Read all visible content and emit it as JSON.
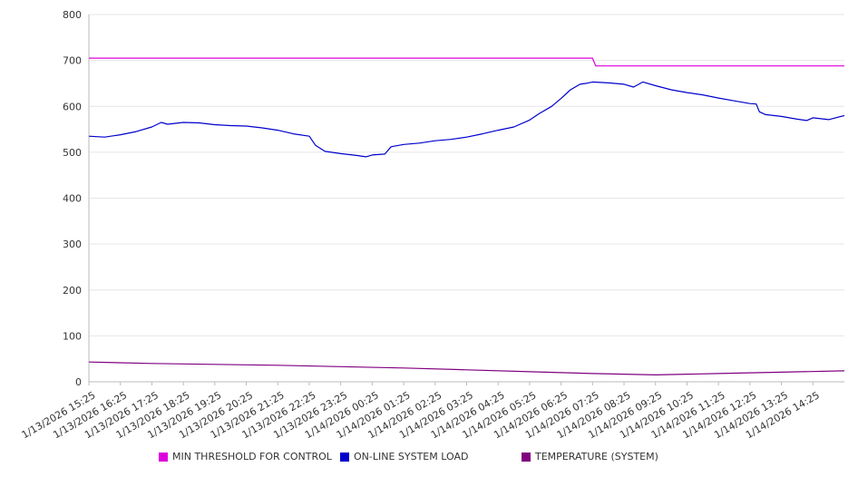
{
  "chart_data": {
    "type": "line",
    "title": "",
    "xlabel": "",
    "ylabel": "",
    "ylim": [
      0,
      800
    ],
    "yticks": [
      0,
      100,
      200,
      300,
      400,
      500,
      600,
      700,
      800
    ],
    "grid": true,
    "legend_position": "bottom",
    "categories": [
      "1/13/2026 15:25",
      "1/13/2026 16:25",
      "1/13/2026 17:25",
      "1/13/2026 18:25",
      "1/13/2026 19:25",
      "1/13/2026 20:25",
      "1/13/2026 21:25",
      "1/13/2026 22:25",
      "1/13/2026 23:25",
      "1/14/2026 00:25",
      "1/14/2026 01:25",
      "1/14/2026 02:25",
      "1/14/2026 03:25",
      "1/14/2026 04:25",
      "1/14/2026 05:25",
      "1/14/2026 06:25",
      "1/14/2026 07:25",
      "1/14/2026 08:25",
      "1/14/2026 09:25",
      "1/14/2026 10:25",
      "1/14/2026 11:25",
      "1/14/2026 12:25",
      "1/14/2026 13:25",
      "1/14/2026 14:25"
    ],
    "series": [
      {
        "name": "MIN THRESHOLD FOR CONTROL",
        "color": "#dd00dd",
        "x": [
          0,
          16.0,
          16.1,
          24
        ],
        "values": [
          705,
          705,
          688,
          688
        ]
      },
      {
        "name": "ON-LINE SYSTEM LOAD",
        "color": "#0000cc",
        "x": [
          0,
          0.5,
          1.0,
          1.5,
          2.0,
          2.3,
          2.5,
          3.0,
          3.5,
          4.0,
          4.5,
          5.0,
          5.5,
          6.0,
          6.5,
          7.0,
          7.2,
          7.5,
          8.0,
          8.5,
          8.8,
          9.0,
          9.4,
          9.6,
          10.0,
          10.5,
          11.0,
          11.5,
          12.0,
          12.5,
          13.0,
          13.5,
          14.0,
          14.3,
          14.7,
          15.0,
          15.3,
          15.6,
          15.8,
          16.0,
          16.5,
          17.0,
          17.3,
          17.6,
          18.0,
          18.5,
          19.0,
          19.5,
          20.0,
          20.5,
          21.0,
          21.2,
          21.3,
          21.5,
          22.0,
          22.5,
          22.8,
          23.0,
          23.5,
          24.0
        ],
        "values": [
          535,
          533,
          538,
          545,
          555,
          565,
          561,
          565,
          564,
          560,
          558,
          557,
          553,
          548,
          540,
          535,
          515,
          502,
          497,
          493,
          490,
          494,
          496,
          512,
          517,
          520,
          525,
          528,
          533,
          540,
          548,
          555,
          570,
          584,
          600,
          617,
          636,
          648,
          650,
          653,
          651,
          648,
          642,
          653,
          645,
          636,
          630,
          625,
          618,
          612,
          606,
          605,
          588,
          582,
          578,
          572,
          569,
          575,
          571,
          580
        ]
      },
      {
        "name": "TEMPERATURE (SYSTEM)",
        "color": "#800080",
        "x": [
          0,
          2,
          4,
          6,
          8,
          10,
          12,
          14,
          16,
          18,
          20,
          22,
          24
        ],
        "values": [
          43,
          40,
          38,
          36,
          33,
          30,
          26,
          22,
          18,
          15,
          18,
          21,
          24
        ]
      }
    ]
  }
}
